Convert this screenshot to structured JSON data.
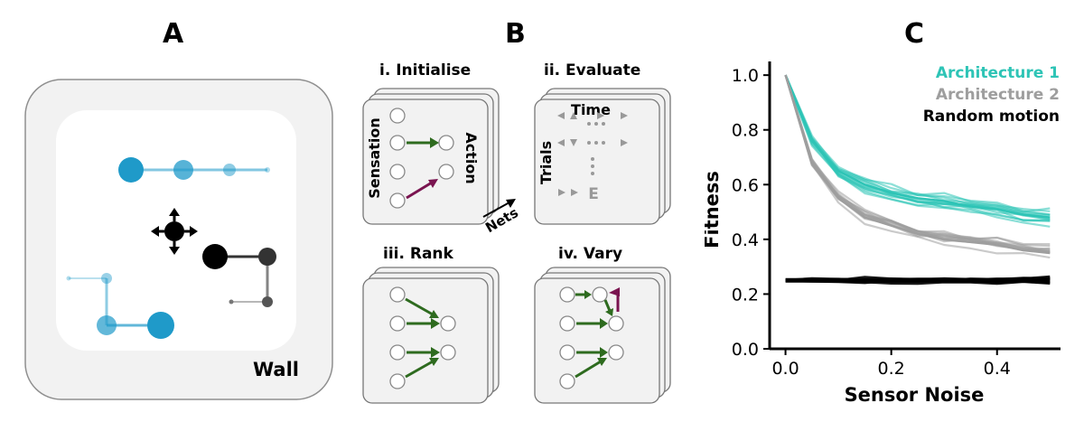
{
  "panels": {
    "a": {
      "label": "A",
      "wall_label": "Wall"
    },
    "b": {
      "label": "B",
      "steps": {
        "initialise": {
          "title": "i. Initialise",
          "sensation": "Sensation",
          "action": "Action"
        },
        "evaluate": {
          "title": "ii. Evaluate",
          "time": "Time",
          "trials": "Trials",
          "end_marker": "E"
        },
        "rank": {
          "title": "iii. Rank"
        },
        "vary": {
          "title": "iv. Vary"
        }
      },
      "nets_label": "Nets"
    },
    "c": {
      "label": "C"
    }
  },
  "colors": {
    "arch1": "#2ec4b6",
    "arch2": "#9e9e9e",
    "random": "#000000",
    "agent_blue": "#1f9ac9",
    "agent_dark": "#333333",
    "arrow_green": "#2e6b1f",
    "arrow_purple": "#7a1450"
  },
  "chart_data": {
    "type": "line",
    "title": "",
    "xlabel": "Sensor Noise",
    "ylabel": "Fitness",
    "xlim": [
      -0.03,
      0.52
    ],
    "ylim": [
      0.0,
      1.05
    ],
    "xticks": [
      0.0,
      0.2,
      0.4
    ],
    "xtick_labels": [
      "0.0",
      "0.2",
      "0.4"
    ],
    "yticks": [
      0.0,
      0.2,
      0.4,
      0.6,
      0.8,
      1.0
    ],
    "ytick_labels": [
      "0.0",
      "0.2",
      "0.4",
      "0.6",
      "0.8",
      "1.0"
    ],
    "legend_position": "top-right",
    "x": [
      0.0,
      0.05,
      0.1,
      0.15,
      0.2,
      0.25,
      0.3,
      0.35,
      0.4,
      0.45,
      0.5
    ],
    "series": [
      {
        "name": "Architecture 1",
        "color": "#2ec4b6",
        "values": [
          1.0,
          0.76,
          0.65,
          0.6,
          0.57,
          0.55,
          0.54,
          0.52,
          0.51,
          0.49,
          0.48
        ]
      },
      {
        "name": "Architecture 2",
        "color": "#9e9e9e",
        "values": [
          1.0,
          0.68,
          0.55,
          0.48,
          0.45,
          0.42,
          0.4,
          0.39,
          0.38,
          0.36,
          0.35
        ]
      },
      {
        "name": "Random motion",
        "color": "#000000",
        "values": [
          0.25,
          0.25,
          0.25,
          0.25,
          0.25,
          0.25,
          0.25,
          0.25,
          0.25,
          0.25,
          0.25
        ]
      }
    ]
  }
}
